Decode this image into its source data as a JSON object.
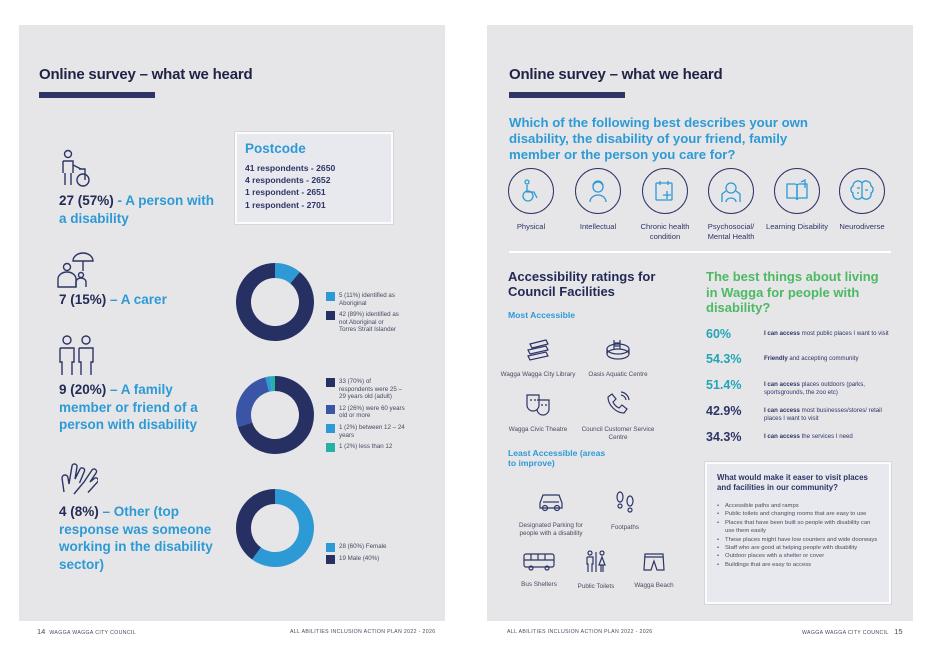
{
  "left": {
    "title": "Online survey – what we heard",
    "stats": [
      {
        "num": "27 (57%)",
        "text": " - A person with a disability",
        "icon": "person-with-wheelchair-icon"
      },
      {
        "num": "7 (15%)",
        "text": " – A carer",
        "icon": "carer-with-umbrella-icon"
      },
      {
        "num": "9 (20%)",
        "text": " – A family member or friend of a person with disability",
        "icon": "family-icon"
      },
      {
        "num": "4 (8%)",
        "text": " – Other (top response was someone working in the disability sector)",
        "icon": "hands-icon"
      }
    ],
    "postcode": {
      "heading": "Postcode",
      "lines": [
        "41 respondents - 2650",
        "4 respondents - 2652",
        "1 respondent - 2651",
        "1 respondent - 2701"
      ]
    },
    "footer_page": "14",
    "footer_left": "WAGGA WAGGA CITY COUNCIL",
    "footer_right": "ALL ABILITIES INCLUSION ACTION PLAN 2022 - 2026"
  },
  "right": {
    "title": "Online survey – what we heard",
    "question": "Which of the following best describes your own disability, the disability of your friend, family member or the person you care for?",
    "disabilities": [
      {
        "label": "Physical",
        "icon": "wheelchair-icon"
      },
      {
        "label": "Intellectual",
        "icon": "head-profile-icon"
      },
      {
        "label": "Chronic health condition",
        "icon": "medical-folder-icon"
      },
      {
        "label": "Psychosocial/ Mental Health",
        "icon": "head-hands-icon"
      },
      {
        "label": "Learning Disability",
        "icon": "book-icon"
      },
      {
        "label": "Neurodiverse",
        "icon": "brain-icon"
      }
    ],
    "ratings": {
      "title": "Accessibility ratings for Council Facilities",
      "most_label": "Most Accessible",
      "most": [
        {
          "label": "Wagga Wagga City Library",
          "icon": "books-icon"
        },
        {
          "label": "Oasis Aquatic Centre",
          "icon": "pool-icon"
        },
        {
          "label": "Wagga Civic Theatre",
          "icon": "theatre-icon"
        },
        {
          "label": "Council Customer Service Centre",
          "icon": "phone-icon"
        }
      ],
      "least_label": "Least Accessible (areas to improve)",
      "least": [
        {
          "label": "Designated Parking for people with a disability",
          "icon": "car-icon"
        },
        {
          "label": "Footpaths",
          "icon": "footprints-icon"
        },
        {
          "label": "Bus Shelters",
          "icon": "bus-icon"
        },
        {
          "label": "Public Toilets",
          "icon": "toilet-icon"
        },
        {
          "label": "Wagga Beach",
          "icon": "swim-shorts-icon"
        }
      ]
    },
    "best": {
      "title": "The best things about living in Wagga for people with disability?",
      "items": [
        {
          "pct": "60%",
          "bold": "I can access",
          "rest": " most public places I want to visit"
        },
        {
          "pct": "54.3%",
          "bold": "Friendly",
          "rest": " and accepting community"
        },
        {
          "pct": "51.4%",
          "bold": "I can access",
          "rest": " places outdoors (parks, sportsgrounds, the zoo etc)"
        },
        {
          "pct": "42.9%",
          "bold": "I can access",
          "rest": " most businesses/stores/ retail places I want to visit"
        },
        {
          "pct": "34.3%",
          "bold": "I can access",
          "rest": " the services I need"
        }
      ]
    },
    "improve": {
      "heading": "What would make it easer to visit places and facilities in our community?",
      "items": [
        "Accessible paths and ramps",
        "Public toilets and changing rooms that are easy to use",
        "Places that have been built so people with disability can use them easily",
        "These places might have low counters and wide doorways",
        "Staff who are good at helping people with disability",
        "Outdoor places with a shelter or cover",
        "Buildings that are easy to access"
      ]
    },
    "footer_left": "ALL ABILITIES INCLUSION ACTION PLAN 2022 - 2026",
    "footer_right": "WAGGA WAGGA CITY COUNCIL",
    "footer_page": "15"
  },
  "chart_data": [
    {
      "type": "pie",
      "categories": [
        "5 (11%) identified as Aboriginal",
        "42 (89%) identified as not Aboriginal or Torres Strait Islander"
      ],
      "values": [
        11,
        89
      ],
      "colors": [
        "#2d9ad6",
        "#263063"
      ]
    },
    {
      "type": "pie",
      "categories": [
        "33 (70%) of respondents were 25 – 29 years old (adult)",
        "12 (26%) were 60 years old or more",
        "1 (2%) between 12 – 24 years",
        "1 (2%) less than 12"
      ],
      "values": [
        70,
        26,
        2,
        2
      ],
      "colors": [
        "#263063",
        "#3a55a6",
        "#2d9ad6",
        "#27b1a6"
      ]
    },
    {
      "type": "pie",
      "categories": [
        "28 (60%) Female",
        "19 Male (40%)"
      ],
      "values": [
        60,
        40
      ],
      "colors": [
        "#2d9ad6",
        "#263063"
      ]
    }
  ]
}
